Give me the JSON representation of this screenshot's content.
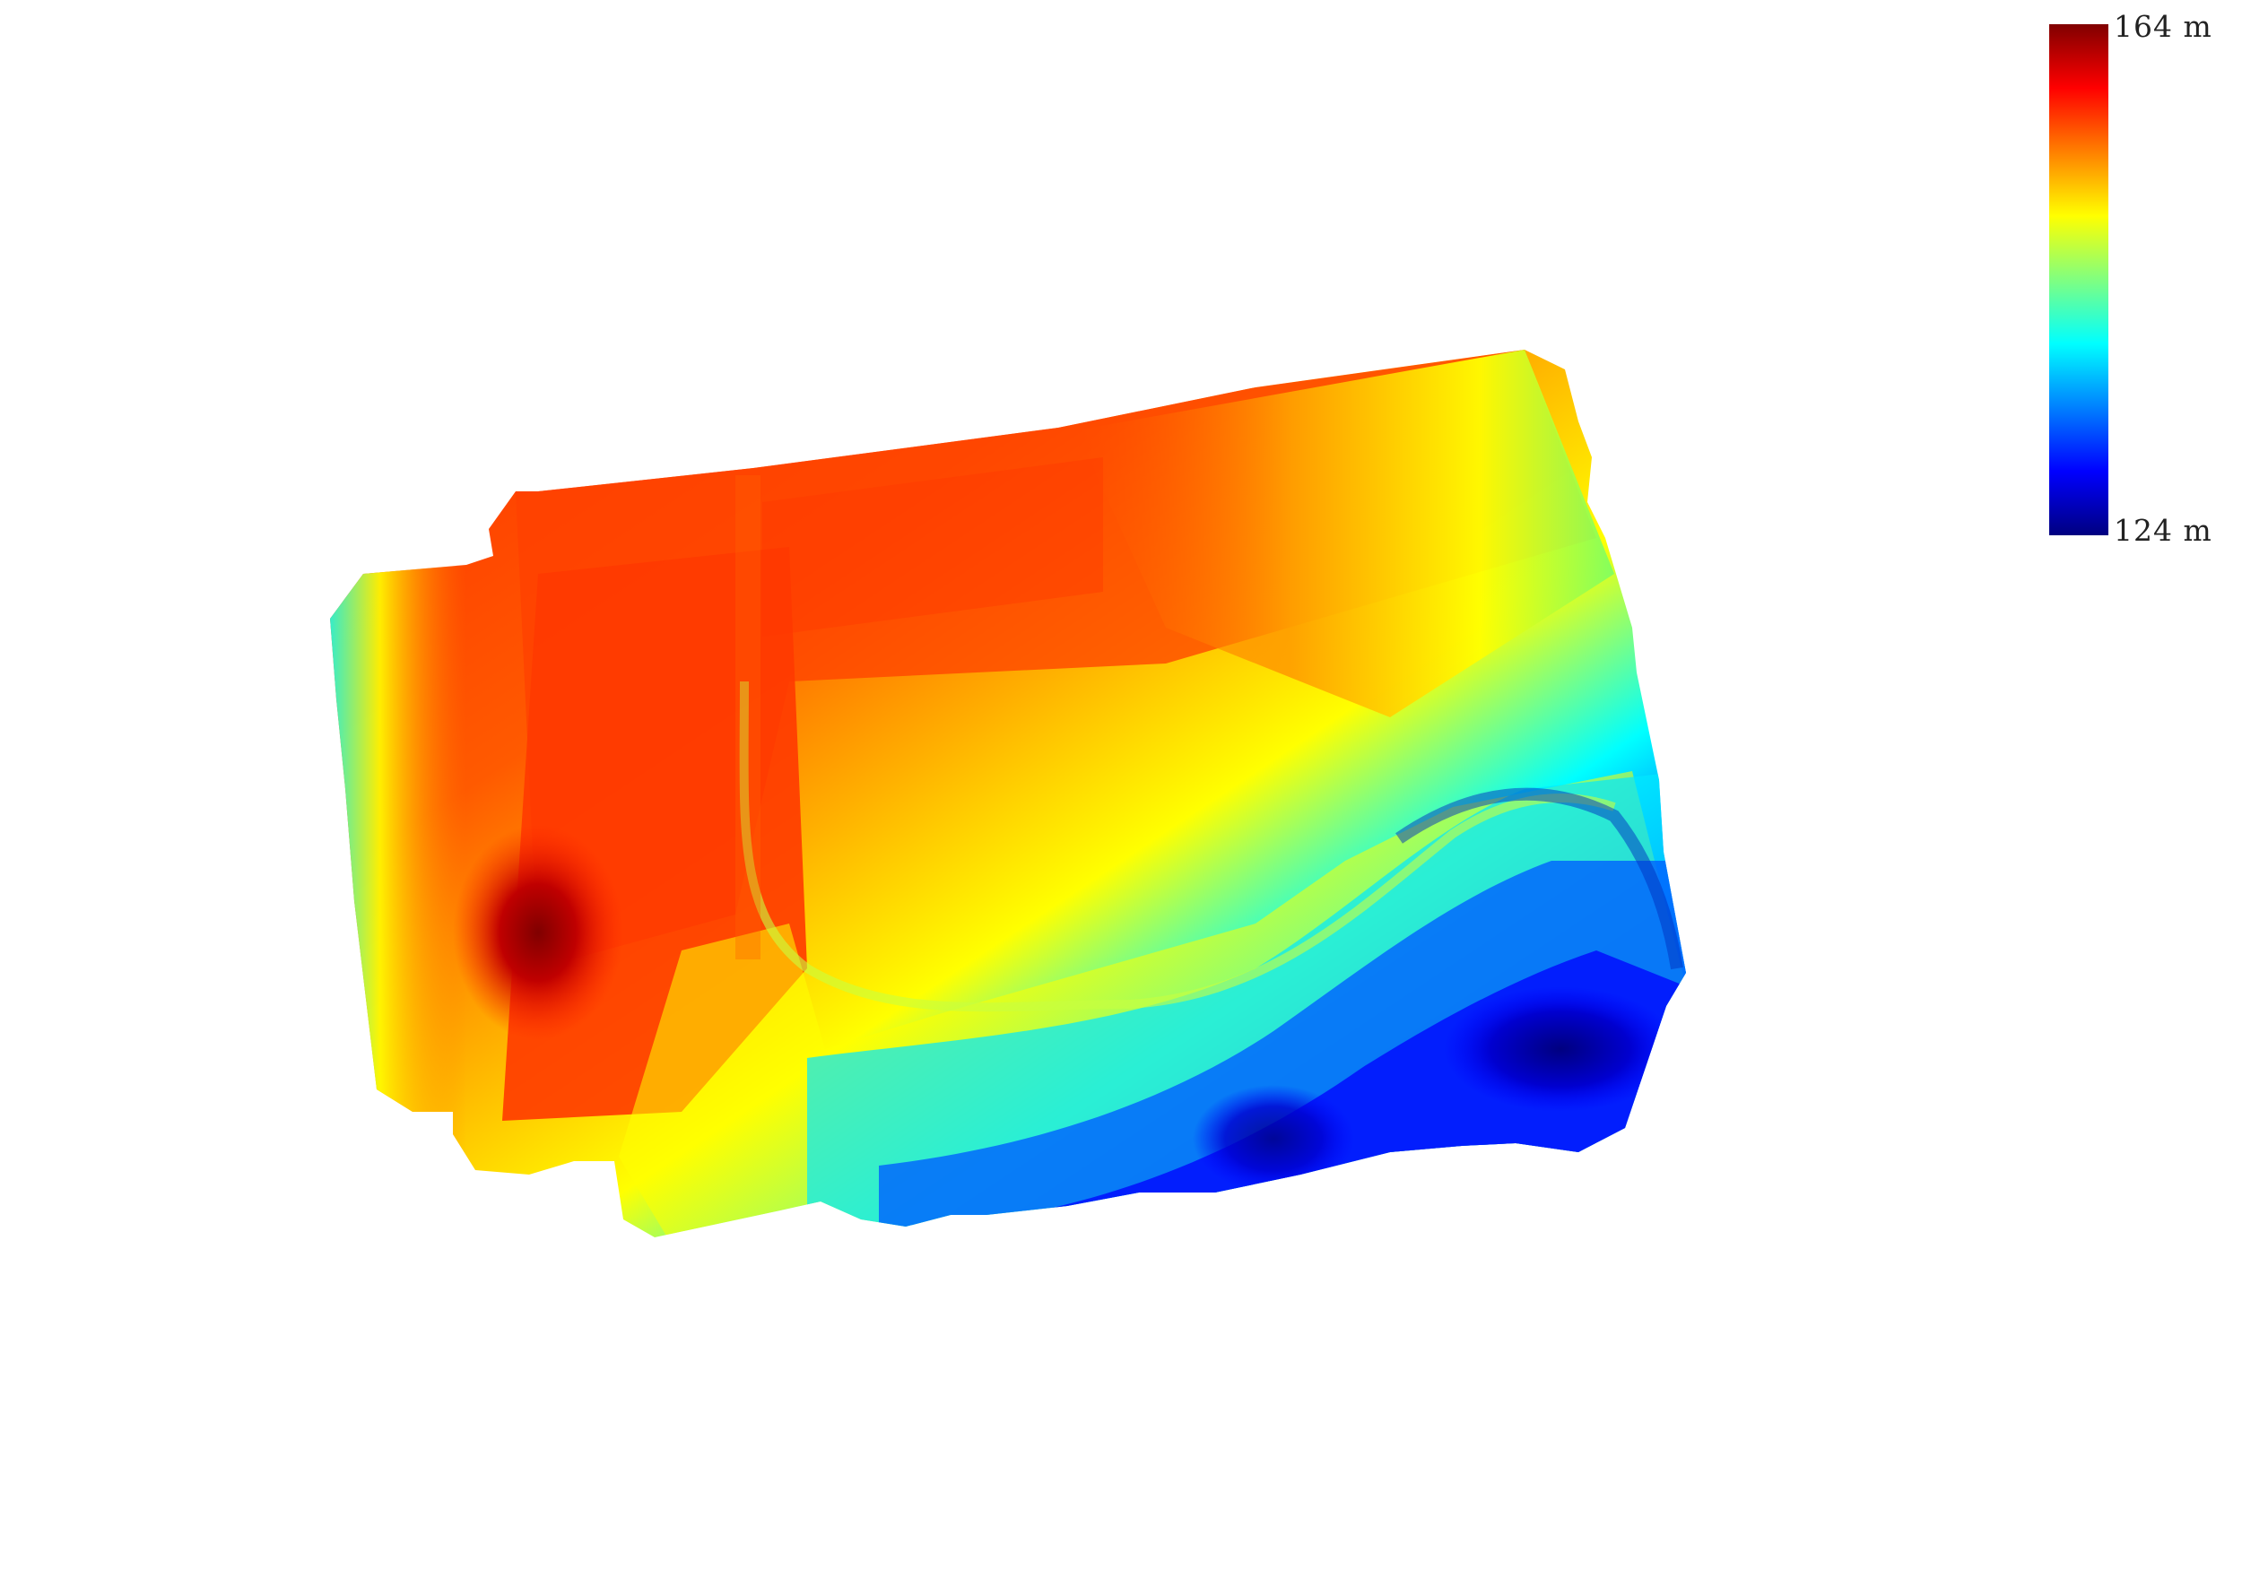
{
  "legend": {
    "max_label": "164 m",
    "min_label": "124 m",
    "colormap": [
      "#800000",
      "#ff0000",
      "#ff8000",
      "#ffff00",
      "#80ff80",
      "#00ffff",
      "#0080ff",
      "#0000ff",
      "#000080"
    ]
  },
  "elevation_map": {
    "type": "digital-elevation-model",
    "value_range_m": [
      124,
      164
    ]
  }
}
